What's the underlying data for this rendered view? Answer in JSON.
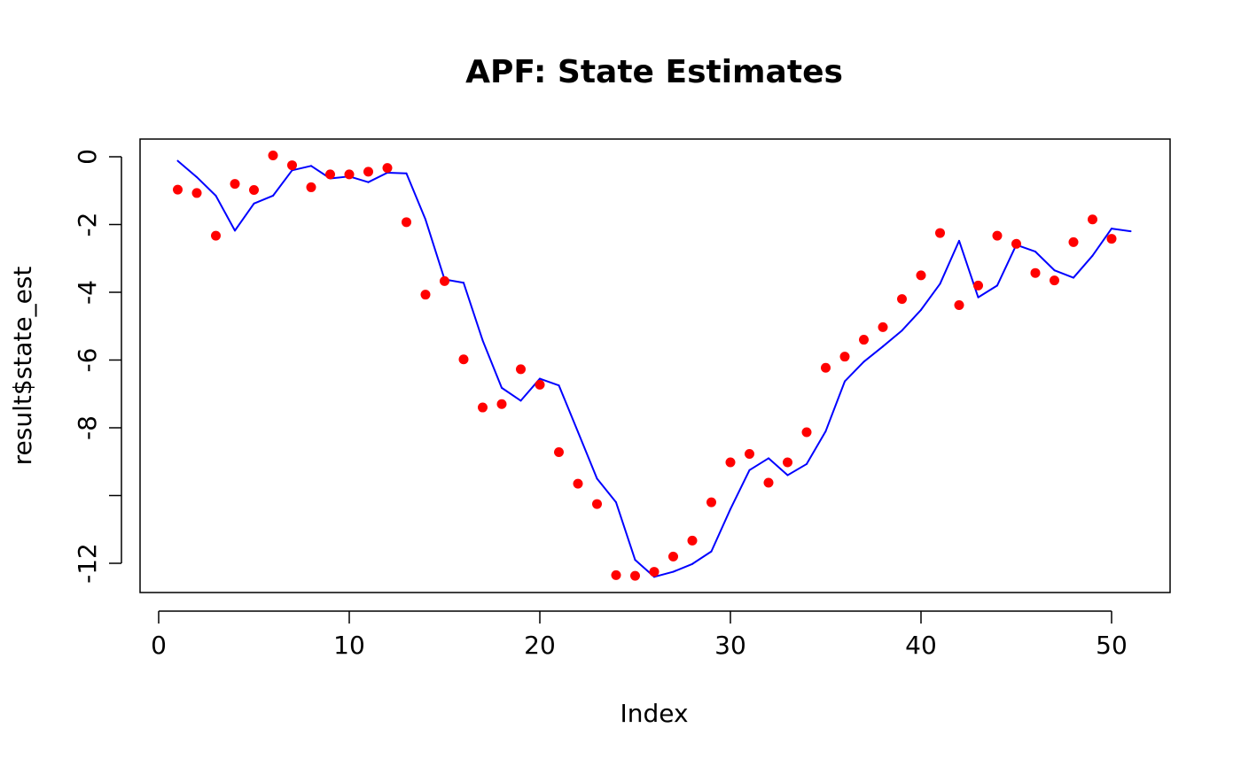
{
  "chart_data": {
    "type": "line",
    "title": "APF: State Estimates",
    "xlabel": "Index",
    "ylabel": "result$state_est",
    "xlim": [
      0,
      51
    ],
    "ylim": [
      -12.5,
      0.5
    ],
    "x_ticks": [
      0,
      10,
      20,
      30,
      40,
      50
    ],
    "y_ticks": [
      0,
      -2,
      -4,
      -6,
      -8,
      -10,
      -12
    ],
    "y_tick_labels": [
      "0",
      "-2",
      "-4",
      "-6",
      "-8",
      "",
      "-12"
    ],
    "grid": false,
    "legend": "none",
    "series": [
      {
        "kind": "line",
        "color": "#0000ff",
        "x": [
          1,
          2,
          3,
          4,
          5,
          6,
          7,
          8,
          9,
          10,
          11,
          12,
          13,
          14,
          15,
          16,
          17,
          18,
          19,
          20,
          21,
          22,
          23,
          24,
          25,
          26,
          27,
          28,
          29,
          30,
          31,
          32,
          33,
          34,
          35,
          36,
          37,
          38,
          39,
          40,
          41,
          42,
          43,
          44,
          45,
          46,
          47,
          48,
          49,
          50,
          51
        ],
        "values": [
          -0.12,
          -0.6,
          -1.15,
          -2.18,
          -1.38,
          -1.15,
          -0.4,
          -0.27,
          -0.64,
          -0.58,
          -0.75,
          -0.47,
          -0.49,
          -1.85,
          -3.62,
          -3.72,
          -5.42,
          -6.82,
          -7.2,
          -6.55,
          -6.75,
          -8.12,
          -9.5,
          -10.2,
          -11.9,
          -12.4,
          -12.25,
          -12.02,
          -11.65,
          -10.4,
          -9.25,
          -8.9,
          -9.4,
          -9.07,
          -8.1,
          -6.63,
          -6.05,
          -5.6,
          -5.13,
          -4.52,
          -3.75,
          -2.48,
          -4.15,
          -3.8,
          -2.6,
          -2.8,
          -3.35,
          -3.57,
          -2.92,
          -2.12,
          -2.2
        ]
      },
      {
        "kind": "points",
        "color": "#ff0000",
        "x": [
          1,
          2,
          3,
          4,
          5,
          6,
          7,
          8,
          9,
          10,
          11,
          12,
          13,
          14,
          15,
          16,
          17,
          18,
          19,
          20,
          21,
          22,
          23,
          24,
          25,
          26,
          27,
          28,
          29,
          30,
          31,
          32,
          33,
          34,
          35,
          36,
          37,
          38,
          39,
          40,
          41,
          42,
          43,
          44,
          45,
          46,
          47,
          48,
          49,
          50
        ],
        "values": [
          -0.97,
          -1.07,
          -2.33,
          -0.8,
          -0.98,
          0.04,
          -0.25,
          -0.9,
          -0.52,
          -0.52,
          -0.44,
          -0.33,
          -1.93,
          -4.07,
          -3.67,
          -5.98,
          -7.4,
          -7.3,
          -6.27,
          -6.73,
          -8.72,
          -9.65,
          -10.25,
          -12.35,
          -12.37,
          -12.25,
          -11.8,
          -11.33,
          -10.2,
          -9.02,
          -8.77,
          -9.62,
          -9.02,
          -8.13,
          -6.23,
          -5.9,
          -5.4,
          -5.03,
          -4.2,
          -3.5,
          -2.25,
          -4.38,
          -3.8,
          -2.33,
          -2.57,
          -3.43,
          -3.65,
          -2.52,
          -1.85,
          -2.42
        ]
      }
    ]
  }
}
